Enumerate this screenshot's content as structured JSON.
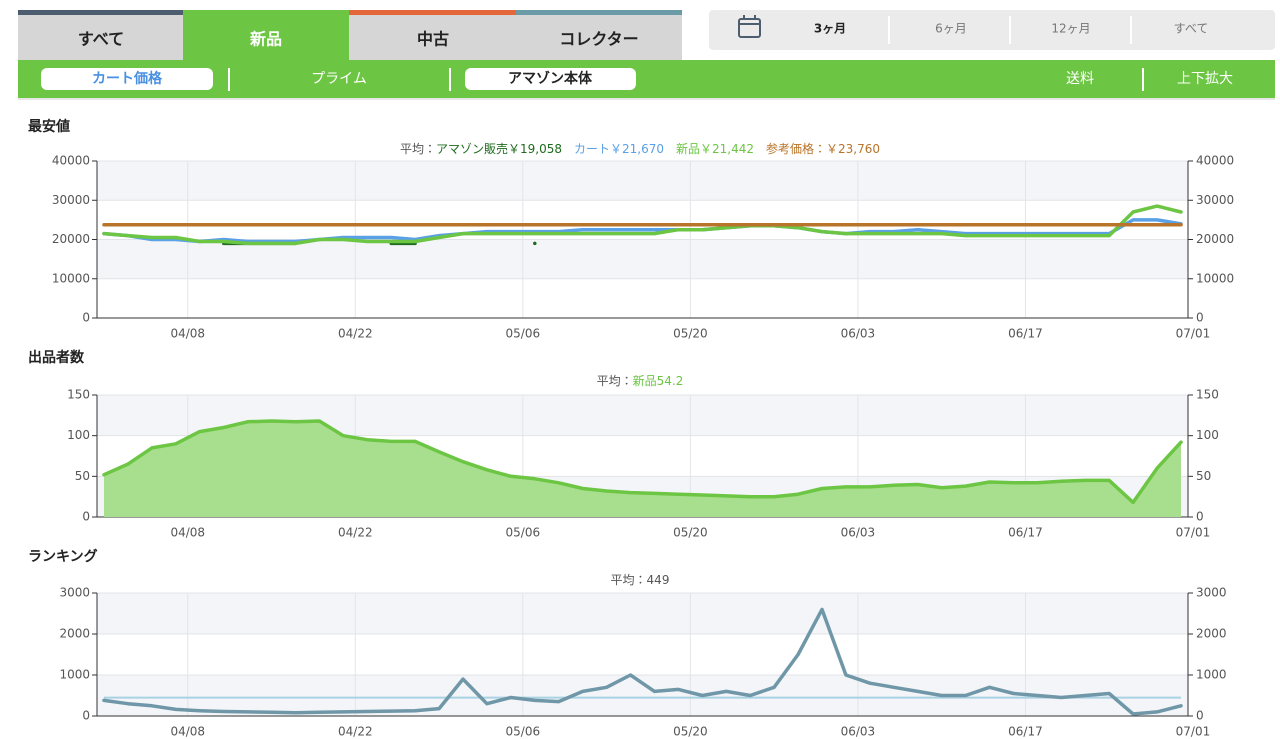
{
  "tabs": [
    "すべて",
    "新品",
    "中古",
    "コレクター"
  ],
  "periods": [
    "3ヶ月",
    "6ヶ月",
    "12ヶ月",
    "すべて"
  ],
  "subtabs": [
    "カート価格",
    "プライム",
    "アマゾン本体",
    "送料",
    "上下拡大"
  ],
  "chart_data": [
    {
      "type": "line",
      "title": "最安値",
      "summary_prefix": "平均：",
      "x": [
        "04/01",
        "04/03",
        "04/05",
        "04/07",
        "04/09",
        "04/11",
        "04/13",
        "04/15",
        "04/17",
        "04/19",
        "04/21",
        "04/23",
        "04/25",
        "04/27",
        "04/29",
        "05/01",
        "05/03",
        "05/05",
        "05/07",
        "05/09",
        "05/11",
        "05/13",
        "05/15",
        "05/17",
        "05/19",
        "05/21",
        "05/23",
        "05/25",
        "05/27",
        "05/29",
        "05/31",
        "06/02",
        "06/04",
        "06/06",
        "06/08",
        "06/10",
        "06/12",
        "06/14",
        "06/16",
        "06/18",
        "06/20",
        "06/22",
        "06/24",
        "06/26",
        "06/28",
        "06/30"
      ],
      "xlim": [
        "04/01",
        "06/30"
      ],
      "xticks": [
        "04/08",
        "04/22",
        "05/06",
        "05/20",
        "06/03",
        "06/17",
        "07/01"
      ],
      "ylim": [
        0,
        40000
      ],
      "yticks": [
        0,
        10000,
        20000,
        30000,
        40000
      ],
      "grid": true,
      "series": [
        {
          "name": "アマゾン販売",
          "summary": "￥19,058",
          "color": "#1e6b1e",
          "values": [
            null,
            null,
            null,
            null,
            null,
            19000,
            19000,
            19000,
            19000,
            null,
            null,
            null,
            19000,
            19000,
            null,
            null,
            null,
            null,
            19000,
            null,
            null,
            null,
            null,
            null,
            null,
            null,
            null,
            null,
            null,
            null,
            null,
            null,
            null,
            null,
            null,
            null,
            null,
            null,
            null,
            null,
            null,
            null,
            null,
            null,
            null,
            null
          ]
        },
        {
          "name": "カート",
          "summary": "￥21,670",
          "color": "#5aa0e6",
          "values": [
            21500,
            21000,
            20000,
            20000,
            19500,
            20000,
            19500,
            19500,
            19500,
            20000,
            20500,
            20500,
            20500,
            20000,
            21000,
            21500,
            22000,
            22000,
            22000,
            22000,
            22500,
            22500,
            22500,
            22500,
            22500,
            22500,
            23000,
            23500,
            23500,
            23000,
            22000,
            21500,
            22000,
            22000,
            22500,
            22000,
            21500,
            21500,
            21500,
            21500,
            21500,
            21500,
            21500,
            25000,
            25000,
            24000
          ]
        },
        {
          "name": "新品",
          "summary": "￥21,442",
          "color": "#6cc644",
          "values": [
            21500,
            21000,
            20500,
            20500,
            19500,
            19500,
            19000,
            19000,
            19000,
            20000,
            20000,
            19500,
            19500,
            19500,
            20500,
            21500,
            21500,
            21500,
            21500,
            21500,
            21500,
            21500,
            21500,
            21500,
            22500,
            22500,
            23000,
            23500,
            23500,
            23000,
            22000,
            21500,
            21500,
            21500,
            21500,
            21500,
            21000,
            21000,
            21000,
            21000,
            21000,
            21000,
            21000,
            27000,
            28500,
            27000
          ]
        },
        {
          "name": "参考価格",
          "summary": "：￥23,760",
          "color": "#b8742a",
          "values": [
            23760,
            23760,
            23760,
            23760,
            23760,
            23760,
            23760,
            23760,
            23760,
            23760,
            23760,
            23760,
            23760,
            23760,
            23760,
            23760,
            23760,
            23760,
            23760,
            23760,
            23760,
            23760,
            23760,
            23760,
            23760,
            23760,
            23760,
            23760,
            23760,
            23760,
            23760,
            23760,
            23760,
            23760,
            23760,
            23760,
            23760,
            23760,
            23760,
            23760,
            23760,
            23760,
            23760,
            23760,
            23760,
            23760
          ]
        }
      ]
    },
    {
      "type": "area",
      "title": "出品者数",
      "summary_prefix": "平均：",
      "x": [
        "04/01",
        "04/03",
        "04/05",
        "04/07",
        "04/09",
        "04/11",
        "04/13",
        "04/15",
        "04/17",
        "04/19",
        "04/21",
        "04/23",
        "04/25",
        "04/27",
        "04/29",
        "05/01",
        "05/03",
        "05/05",
        "05/07",
        "05/09",
        "05/11",
        "05/13",
        "05/15",
        "05/17",
        "05/19",
        "05/21",
        "05/23",
        "05/25",
        "05/27",
        "05/29",
        "05/31",
        "06/02",
        "06/04",
        "06/06",
        "06/08",
        "06/10",
        "06/12",
        "06/14",
        "06/16",
        "06/18",
        "06/20",
        "06/22",
        "06/24",
        "06/26",
        "06/28",
        "06/30"
      ],
      "xlim": [
        "04/01",
        "06/30"
      ],
      "xticks": [
        "04/08",
        "04/22",
        "05/06",
        "05/20",
        "06/03",
        "06/17",
        "07/01"
      ],
      "ylim": [
        0,
        150
      ],
      "yticks": [
        0,
        50,
        100,
        150
      ],
      "grid": true,
      "series": [
        {
          "name": "新品",
          "summary": "54.2",
          "color": "#6cc644",
          "fill": "#a8df8e",
          "values": [
            52,
            65,
            85,
            90,
            105,
            110,
            117,
            118,
            117,
            118,
            100,
            95,
            93,
            93,
            80,
            68,
            58,
            50,
            47,
            42,
            35,
            32,
            30,
            29,
            28,
            27,
            26,
            25,
            25,
            28,
            35,
            37,
            37,
            39,
            40,
            36,
            38,
            43,
            42,
            42,
            44,
            45,
            45,
            18,
            60,
            92
          ]
        }
      ]
    },
    {
      "type": "line",
      "title": "ランキング",
      "summary_prefix": "平均：",
      "average": 449,
      "average_color": "#a9d2e3",
      "x": [
        "04/01",
        "04/03",
        "04/05",
        "04/07",
        "04/09",
        "04/11",
        "04/13",
        "04/15",
        "04/17",
        "04/19",
        "04/21",
        "04/23",
        "04/25",
        "04/27",
        "04/29",
        "05/01",
        "05/03",
        "05/05",
        "05/07",
        "05/09",
        "05/11",
        "05/13",
        "05/15",
        "05/17",
        "05/19",
        "05/21",
        "05/23",
        "05/25",
        "05/27",
        "05/29",
        "05/31",
        "06/02",
        "06/04",
        "06/06",
        "06/08",
        "06/10",
        "06/12",
        "06/14",
        "06/16",
        "06/18",
        "06/20",
        "06/22",
        "06/24",
        "06/26",
        "06/28",
        "06/30"
      ],
      "xlim": [
        "04/01",
        "06/30"
      ],
      "xticks": [
        "04/08",
        "04/22",
        "05/06",
        "05/20",
        "06/03",
        "06/17",
        "07/01"
      ],
      "ylim": [
        0,
        3000
      ],
      "yticks": [
        0,
        1000,
        2000,
        3000
      ],
      "grid": true,
      "series": [
        {
          "color": "#6f97a8",
          "values": [
            380,
            300,
            250,
            160,
            130,
            110,
            100,
            90,
            80,
            90,
            100,
            110,
            120,
            130,
            180,
            900,
            300,
            450,
            380,
            350,
            600,
            700,
            1000,
            600,
            650,
            500,
            600,
            500,
            700,
            1500,
            2600,
            1000,
            800,
            700,
            600,
            500,
            500,
            700,
            550,
            500,
            450,
            500,
            550,
            50,
            100,
            250
          ]
        }
      ]
    }
  ]
}
